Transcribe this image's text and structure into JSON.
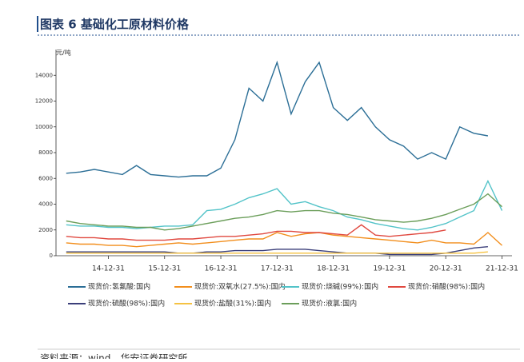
{
  "header": {
    "title": "图表 6 基础化工原材料价格"
  },
  "chart_data": {
    "type": "line",
    "y_label": "元/吨",
    "categories": [
      null,
      null,
      null,
      "14-12-31",
      null,
      null,
      null,
      "15-12-31",
      null,
      null,
      null,
      "16-12-31",
      null,
      null,
      null,
      "17-12-31",
      null,
      null,
      null,
      "18-12-31",
      null,
      null,
      null,
      "19-12-31",
      null,
      null,
      null,
      "20-12-31",
      null,
      null,
      null,
      "21-12-31"
    ],
    "ylim": [
      0,
      16000
    ],
    "yticks": [
      0,
      2000,
      4000,
      6000,
      8000,
      10000,
      12000,
      14000
    ],
    "series": [
      {
        "name": "现货价:氢氟酸:国内",
        "color": "#2b6e96",
        "values": [
          6400,
          6500,
          6700,
          6500,
          6300,
          7000,
          6300,
          6200,
          6100,
          6200,
          6200,
          6800,
          9000,
          13000,
          12000,
          15000,
          11000,
          13500,
          15000,
          11500,
          10500,
          11500,
          10000,
          9000,
          8500,
          7500,
          8000,
          7500,
          10000,
          9500,
          9300,
          null
        ]
      },
      {
        "name": "现货价:双氧水(27.5%):国内",
        "color": "#f28e1c",
        "values": [
          1000,
          900,
          900,
          800,
          800,
          700,
          800,
          900,
          1000,
          900,
          1000,
          1100,
          1200,
          1300,
          1300,
          1800,
          1500,
          1700,
          1800,
          1600,
          1500,
          1400,
          1300,
          1200,
          1100,
          1000,
          1200,
          1000,
          1000,
          900,
          1800,
          800
        ]
      },
      {
        "name": "现货价:烧碱(99%):国内",
        "color": "#52c3c8",
        "values": [
          2400,
          2300,
          2300,
          2200,
          2200,
          2100,
          2200,
          2300,
          2300,
          2400,
          3500,
          3600,
          4000,
          4500,
          4800,
          5200,
          4000,
          4200,
          3800,
          3500,
          3000,
          2800,
          2500,
          2300,
          2100,
          2000,
          2200,
          2500,
          3000,
          3500,
          5800,
          3500
        ]
      },
      {
        "name": "现货价:硝酸(98%):国内",
        "color": "#e0483f",
        "values": [
          1500,
          1400,
          1400,
          1300,
          1300,
          1200,
          1200,
          1200,
          1300,
          1300,
          1400,
          1500,
          1500,
          1600,
          1700,
          1900,
          1900,
          1800,
          1800,
          1700,
          1600,
          2400,
          1600,
          1500,
          1600,
          1700,
          1800,
          2000,
          null,
          null,
          null,
          null
        ]
      },
      {
        "name": "现货价:硫酸(98%):国内",
        "color": "#3b3f7a",
        "values": [
          300,
          300,
          300,
          300,
          300,
          300,
          300,
          300,
          200,
          200,
          300,
          300,
          400,
          400,
          400,
          500,
          500,
          500,
          400,
          300,
          200,
          200,
          200,
          100,
          100,
          100,
          100,
          200,
          400,
          600,
          700,
          null
        ]
      },
      {
        "name": "现货价:盐酸(31%):国内",
        "color": "#f5c242",
        "values": [
          200,
          200,
          200,
          200,
          200,
          200,
          200,
          200,
          200,
          200,
          200,
          200,
          200,
          200,
          200,
          200,
          200,
          200,
          200,
          200,
          200,
          200,
          200,
          200,
          200,
          200,
          200,
          200,
          200,
          200,
          300,
          null
        ]
      },
      {
        "name": "现货价:液氯:国内",
        "color": "#6b9e5a",
        "values": [
          2700,
          2500,
          2400,
          2300,
          2300,
          2200,
          2200,
          2000,
          2100,
          2300,
          2500,
          2700,
          2900,
          3000,
          3200,
          3500,
          3400,
          3500,
          3500,
          3300,
          3200,
          3000,
          2800,
          2700,
          2600,
          2700,
          2900,
          3200,
          3600,
          4000,
          4800,
          3800
        ]
      }
    ]
  },
  "footer": {
    "source": "资料来源：wind，华安证券研究所"
  }
}
